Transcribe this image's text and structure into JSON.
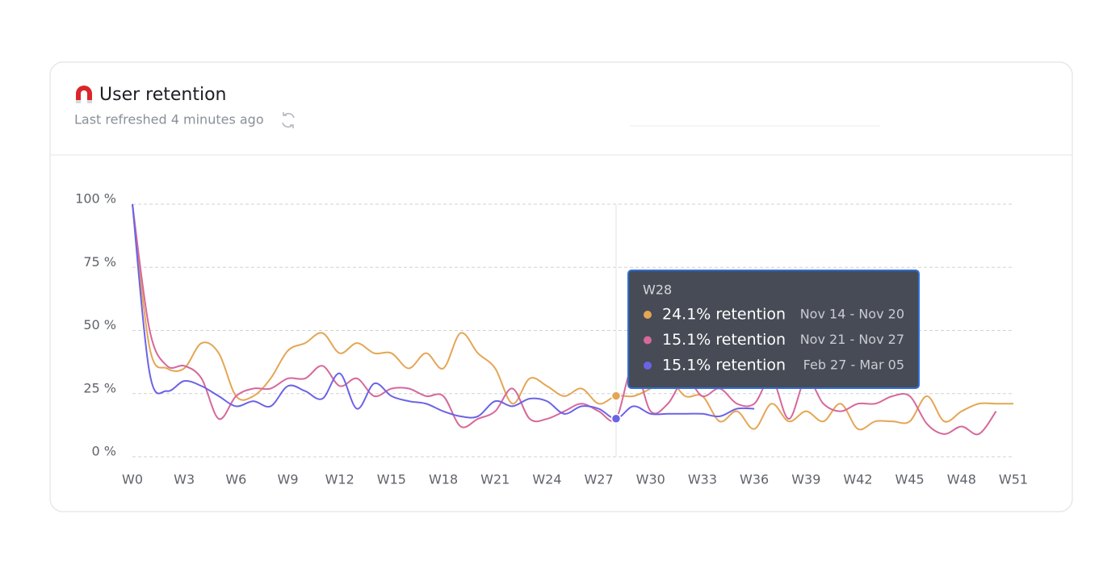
{
  "header": {
    "title": "User retention",
    "subtitle": "Last refreshed 4 minutes ago"
  },
  "chart_data": {
    "type": "line",
    "categories": [
      "W0",
      null,
      null,
      "W3",
      null,
      null,
      "W6",
      null,
      null,
      "W9",
      null,
      null,
      "W12",
      null,
      null,
      "W15",
      null,
      null,
      "W18",
      null,
      null,
      "W21",
      null,
      null,
      "W24",
      null,
      null,
      "W27",
      null,
      null,
      "W30",
      null,
      null,
      "W33",
      null,
      null,
      "W36",
      null,
      null,
      "W39",
      null,
      null,
      "W42",
      null,
      null,
      "W45",
      null,
      null,
      "W48",
      null,
      null,
      "W51"
    ],
    "ylim": [
      0,
      100
    ],
    "yticks": [
      {
        "value": 0,
        "label": "0 %"
      },
      {
        "value": 25,
        "label": "25 %"
      },
      {
        "value": 50,
        "label": "50 %"
      },
      {
        "value": 75,
        "label": "75 %"
      },
      {
        "value": 100,
        "label": "100 %"
      }
    ],
    "grid": true,
    "hover": "W28",
    "series": [
      {
        "name": "Nov 14 - Nov 20",
        "color": "#e4a655",
        "values": [
          100,
          43,
          35,
          35,
          45,
          41,
          24,
          24,
          31,
          42,
          45,
          49,
          41,
          45,
          41,
          41,
          35,
          41,
          35,
          49,
          41,
          35,
          21,
          31,
          28,
          24,
          27,
          21,
          24.1,
          24,
          27,
          31,
          24,
          24,
          14,
          18,
          11,
          21,
          14,
          18,
          14,
          21,
          11,
          14,
          14,
          14,
          24,
          14,
          18,
          21,
          21,
          21
        ],
        "value_labels": [
          null,
          null,
          null,
          null,
          null,
          null,
          null,
          null,
          null,
          null,
          null,
          null,
          null,
          null,
          null,
          null,
          null,
          null,
          null,
          null,
          null,
          null,
          null,
          null,
          null,
          null,
          null,
          null,
          "24.1% retention",
          null,
          null,
          null,
          null,
          null,
          null,
          null,
          null,
          null,
          null,
          null,
          null,
          null,
          null,
          null,
          null,
          null,
          null,
          null,
          null,
          null,
          null,
          null
        ]
      },
      {
        "name": "Nov 21 - Nov 27",
        "color": "#d6689b",
        "values": [
          100,
          50,
          36,
          36,
          31,
          15,
          24,
          27,
          27,
          31,
          31,
          36,
          28,
          31,
          24,
          27,
          27,
          24,
          24,
          12,
          15,
          18,
          27,
          15,
          15,
          18,
          21,
          18,
          15.1,
          36,
          18,
          21,
          31,
          24,
          27,
          21,
          21,
          31,
          15,
          31,
          21,
          18,
          21,
          21,
          24,
          24,
          13,
          9,
          12,
          9,
          18,
          null
        ],
        "value_labels": [
          null,
          null,
          null,
          null,
          null,
          null,
          null,
          null,
          null,
          null,
          null,
          null,
          null,
          null,
          null,
          null,
          null,
          null,
          null,
          null,
          null,
          null,
          null,
          null,
          null,
          null,
          null,
          null,
          "15.1% retention",
          null,
          null,
          null,
          null,
          null,
          null,
          null,
          null,
          null,
          null,
          null,
          null,
          null,
          null,
          null,
          null,
          null,
          null,
          null,
          null,
          null,
          null,
          null
        ]
      },
      {
        "name": "Feb 27 - Mar 05",
        "color": "#6b63e6",
        "values": [
          100,
          33,
          26,
          30,
          28,
          24,
          20,
          22,
          20,
          28,
          26,
          23,
          33,
          19,
          29,
          24,
          22,
          21,
          18,
          16,
          16,
          22,
          20,
          23,
          22,
          17,
          20,
          19,
          15.1,
          20,
          17,
          17,
          17,
          17,
          16,
          19,
          19,
          null,
          null,
          null,
          null,
          null,
          null,
          null,
          null,
          null,
          null,
          null,
          null,
          null,
          null,
          null
        ],
        "value_labels": [
          null,
          null,
          null,
          null,
          null,
          null,
          null,
          null,
          null,
          null,
          null,
          null,
          null,
          null,
          null,
          null,
          null,
          null,
          null,
          null,
          null,
          null,
          null,
          null,
          null,
          null,
          null,
          null,
          "15.1% retention",
          null,
          null,
          null,
          null,
          null,
          null,
          null,
          null,
          null,
          null,
          null,
          null,
          null,
          null,
          null,
          null,
          null,
          null,
          null,
          null,
          null,
          null,
          null
        ]
      }
    ]
  }
}
